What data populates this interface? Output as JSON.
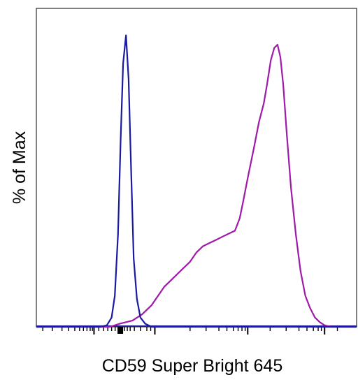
{
  "chart_data": {
    "type": "line",
    "title": "",
    "xlabel": "CD59 Super Bright 645",
    "ylabel": "% of Max",
    "xscale": "log",
    "xlim": [
      0,
      100
    ],
    "ylim": [
      0,
      100
    ],
    "grid": false,
    "legend": "none",
    "x_tick_labels": [],
    "y_tick_labels": [],
    "series": [
      {
        "color": "#1a1aa0",
        "x": [
          0,
          20,
          22,
          23.5,
          24.5,
          25.5,
          26.3,
          27.1,
          28,
          28.8,
          29.6,
          30.4,
          31.4,
          32.5,
          34,
          36,
          100
        ],
        "y": [
          0,
          0,
          0.5,
          3,
          10,
          30,
          60,
          85,
          94,
          80,
          50,
          22,
          9,
          3,
          1,
          0,
          0
        ]
      },
      {
        "color": "#a01aaa",
        "x": [
          0,
          23,
          26,
          30,
          33,
          36,
          38,
          40,
          42,
          44,
          46,
          48,
          50,
          52,
          54,
          56,
          58,
          60,
          62,
          63.5,
          64.5,
          66,
          68,
          69.5,
          71,
          72,
          73.2,
          74.3,
          75.3,
          76.2,
          77.1,
          78.2,
          79.5,
          81,
          82.5,
          84,
          85.5,
          87,
          88.5,
          90,
          92,
          100
        ],
        "y": [
          0,
          0,
          1,
          2,
          4,
          7,
          10,
          13,
          15,
          17,
          19,
          21,
          24,
          26,
          27,
          28,
          29,
          30,
          31,
          35,
          40,
          48,
          58,
          66,
          72,
          78,
          86,
          90,
          91,
          87,
          78,
          62,
          45,
          30,
          18,
          10,
          6,
          3,
          1.5,
          0.5,
          0,
          0
        ]
      }
    ]
  }
}
